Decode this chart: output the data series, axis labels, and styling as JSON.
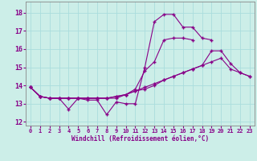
{
  "xlabel": "Windchill (Refroidissement éolien,°C)",
  "background_color": "#cceee8",
  "grid_color": "#aadddd",
  "line_color": "#880088",
  "xlim": [
    -0.5,
    23.5
  ],
  "ylim": [
    11.8,
    18.6
  ],
  "yticks": [
    12,
    13,
    14,
    15,
    16,
    17,
    18
  ],
  "xticks": [
    0,
    1,
    2,
    3,
    4,
    5,
    6,
    7,
    8,
    9,
    10,
    11,
    12,
    13,
    14,
    15,
    16,
    17,
    18,
    19,
    20,
    21,
    22,
    23
  ],
  "series": [
    [
      13.9,
      13.4,
      13.3,
      13.3,
      12.7,
      13.3,
      13.2,
      13.2,
      12.4,
      13.1,
      13.0,
      13.0,
      15.0,
      17.5,
      17.9,
      17.9,
      17.2,
      17.2,
      16.6,
      16.5,
      null,
      null,
      null,
      null
    ],
    [
      13.9,
      13.4,
      13.3,
      13.3,
      13.3,
      13.3,
      13.3,
      13.3,
      13.3,
      13.3,
      13.5,
      13.8,
      14.8,
      15.3,
      16.5,
      16.6,
      16.6,
      16.5,
      null,
      null,
      null,
      null,
      null,
      null
    ],
    [
      13.9,
      13.4,
      13.3,
      13.3,
      13.3,
      13.3,
      13.3,
      13.3,
      13.3,
      13.4,
      13.5,
      13.7,
      13.8,
      14.0,
      14.3,
      14.5,
      14.7,
      14.9,
      15.1,
      15.9,
      15.9,
      15.2,
      14.7,
      14.5
    ],
    [
      13.9,
      13.4,
      13.3,
      13.3,
      13.3,
      13.3,
      13.3,
      13.3,
      13.3,
      13.4,
      13.5,
      13.7,
      13.9,
      14.1,
      14.3,
      14.5,
      14.7,
      14.9,
      15.1,
      15.3,
      15.5,
      14.9,
      14.7,
      14.5
    ]
  ]
}
